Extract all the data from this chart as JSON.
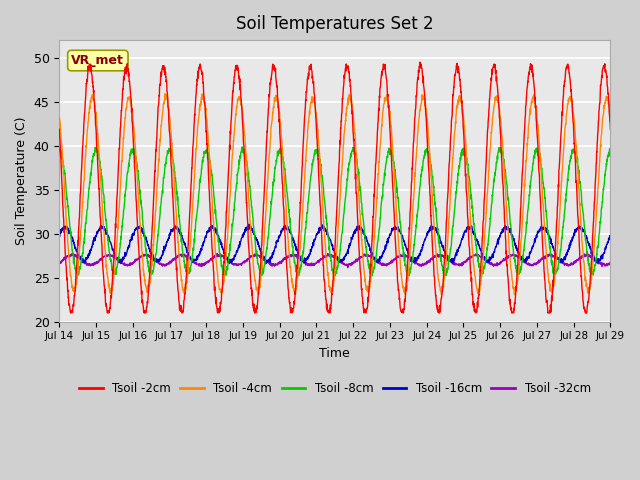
{
  "title": "Soil Temperatures Set 2",
  "xlabel": "Time",
  "ylabel": "Soil Temperature (C)",
  "ylim": [
    20,
    52
  ],
  "yticks": [
    20,
    25,
    30,
    35,
    40,
    45,
    50
  ],
  "annotation": "VR_met",
  "line_colors": {
    "2cm": "#ff0000",
    "4cm": "#ff8800",
    "8cm": "#00cc00",
    "16cm": "#0000cc",
    "32cm": "#9900bb"
  },
  "legend_labels": [
    "Tsoil -2cm",
    "Tsoil -4cm",
    "Tsoil -8cm",
    "Tsoil -16cm",
    "Tsoil -32cm"
  ],
  "xtick_labels": [
    "Jul 14",
    "Jul 15",
    "Jul 16",
    "Jul 17",
    "Jul 18",
    "Jul 19",
    "Jul 20",
    "Jul 21",
    "Jul 22",
    "Jul 23",
    "Jul 24",
    "Jul 25",
    "Jul 26",
    "Jul 27",
    "Jul 28",
    "Jul 29"
  ],
  "n_days": 15,
  "samples_per_day": 144
}
